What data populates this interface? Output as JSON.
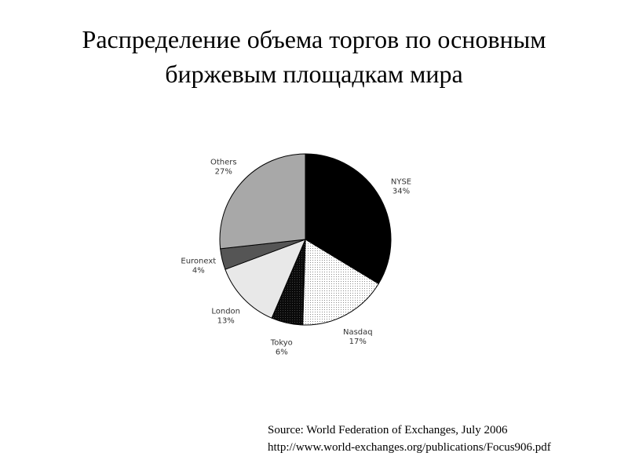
{
  "slide": {
    "title_line1": "Распределение объема торгов по основным",
    "title_line2": "биржевым площадкам мира"
  },
  "source": {
    "line1": "Source: World Federation of Exchanges, July 2006",
    "line2": "http://www.world-exchanges.org/publications/Focus906.pdf"
  },
  "chart_data": {
    "type": "pie",
    "title": "",
    "start_angle_deg": 0,
    "direction": "clockwise",
    "slices": [
      {
        "label": "NYSE",
        "value": 34,
        "value_label": "34%",
        "fill": "#000000",
        "pattern": "solid-black"
      },
      {
        "label": "Nasdaq",
        "value": 17,
        "value_label": "17%",
        "fill": "#ffffff",
        "pattern": "fine-dots"
      },
      {
        "label": "Tokyo",
        "value": 6,
        "value_label": "6%",
        "fill": "#1a1a1a",
        "pattern": "dark-grey"
      },
      {
        "label": "London",
        "value": 13,
        "value_label": "13%",
        "fill": "#e8e8e8",
        "pattern": "light-grey"
      },
      {
        "label": "Euronext",
        "value": 4,
        "value_label": "4%",
        "fill": "#555555",
        "pattern": "mid-grey"
      },
      {
        "label": "Others",
        "value": 27,
        "value_label": "27%",
        "fill": "#a8a8a8",
        "pattern": "grey"
      }
    ]
  }
}
